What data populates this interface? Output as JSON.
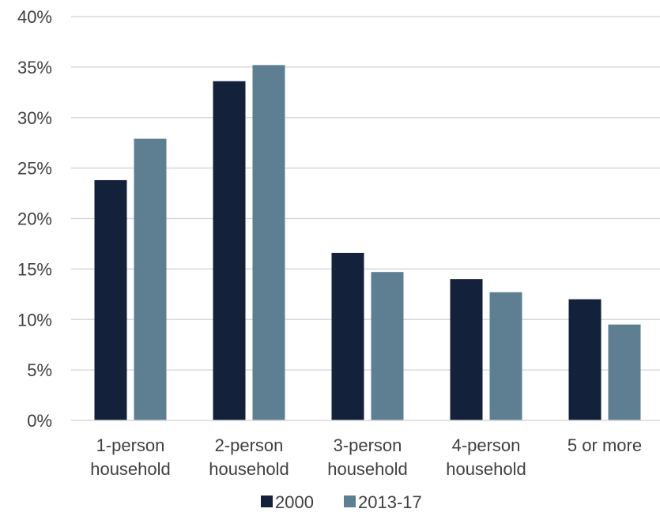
{
  "chart_data": {
    "type": "bar",
    "title": "",
    "xlabel": "",
    "ylabel": "",
    "categories": [
      [
        "1-person",
        "household"
      ],
      [
        "2-person",
        "household"
      ],
      [
        "3-person",
        "household"
      ],
      [
        "4-person",
        "household"
      ],
      [
        "5 or more"
      ]
    ],
    "series": [
      {
        "name": "2000",
        "color": "#14213a",
        "values": [
          23.8,
          33.6,
          16.6,
          14.0,
          12.0
        ]
      },
      {
        "name": "2013-17",
        "color": "#5e7f91",
        "values": [
          27.9,
          35.2,
          14.7,
          12.7,
          9.5
        ]
      }
    ],
    "ylim": [
      0,
      40
    ],
    "yticks": [
      0,
      5,
      10,
      15,
      20,
      25,
      30,
      35,
      40
    ],
    "ytick_labels": [
      "0%",
      "5%",
      "10%",
      "15%",
      "20%",
      "25%",
      "30%",
      "35%",
      "40%"
    ],
    "grid": true,
    "legend_position": "bottom"
  }
}
